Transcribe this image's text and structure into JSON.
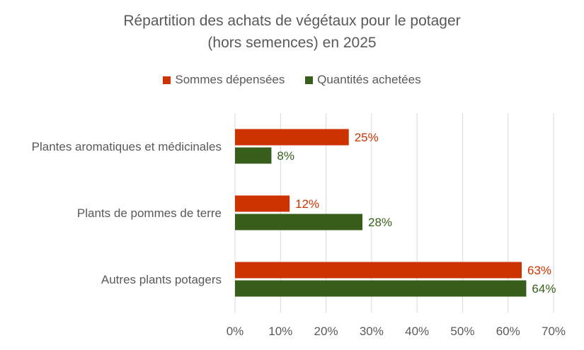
{
  "chart_data": {
    "type": "bar",
    "orientation": "horizontal",
    "title": "Répartition des achats de végétaux pour le potager (hors semences) en 2025",
    "title_lines": [
      "Répartition des achats de végétaux pour le potager",
      "(hors semences) en 2025"
    ],
    "categories": [
      "Plantes aromatiques et médicinales",
      "Plants de pommes de terre",
      "Autres plants potagers"
    ],
    "series": [
      {
        "name": "Sommes dépensées",
        "values": [
          25,
          12,
          63
        ],
        "color": "#CC3300"
      },
      {
        "name": "Quantités achetées",
        "values": [
          8,
          28,
          64
        ],
        "color": "#375F1B"
      }
    ],
    "value_format": "percent",
    "xlim": [
      0,
      70
    ],
    "xticks": [
      "0%",
      "10%",
      "20%",
      "30%",
      "40%",
      "50%",
      "60%",
      "70%"
    ],
    "grid": "vertical",
    "legend_position": "top",
    "data_labels": true
  }
}
